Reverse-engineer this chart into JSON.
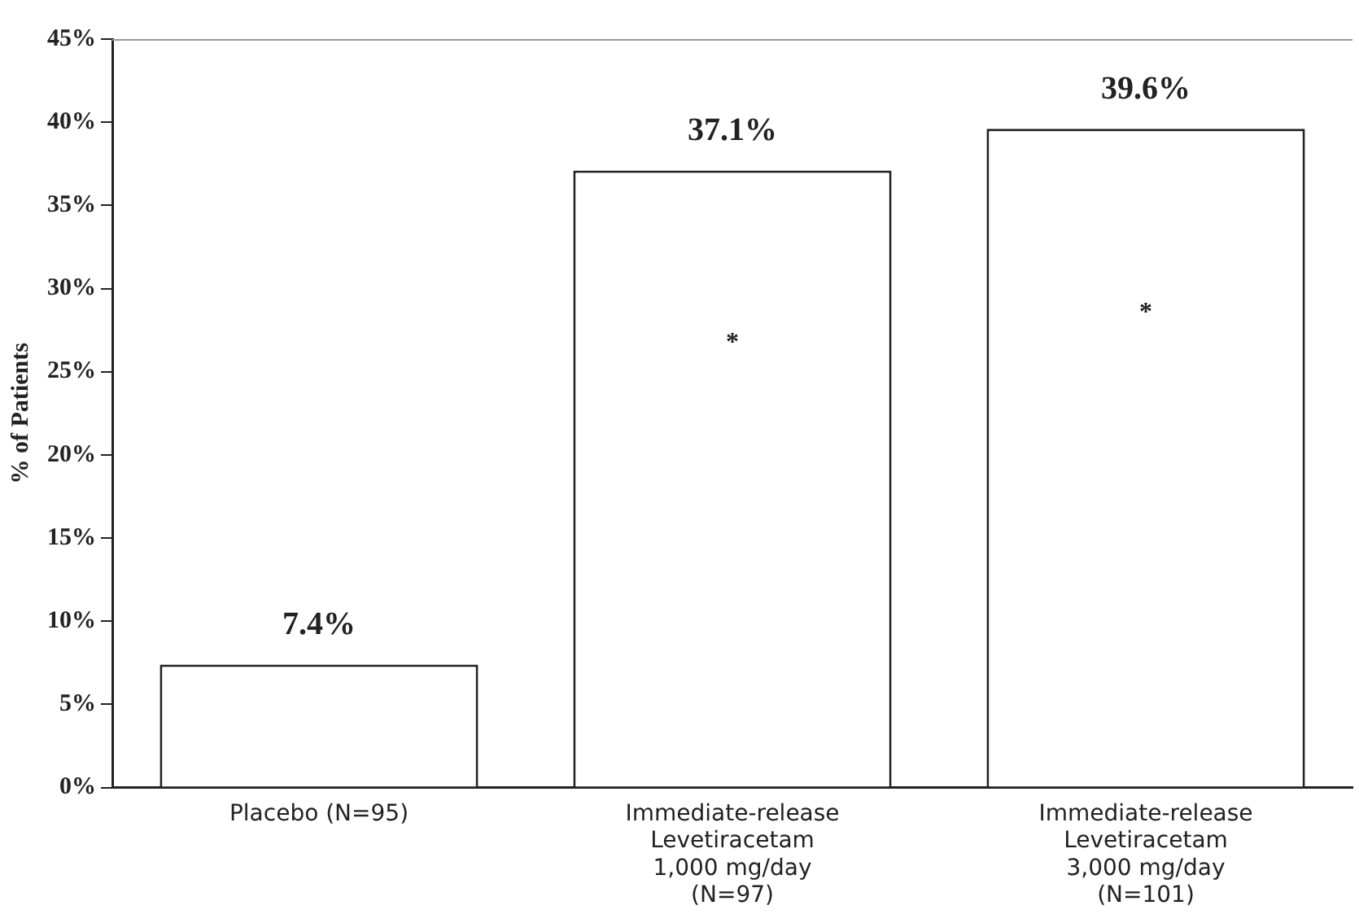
{
  "chart_data": {
    "type": "bar",
    "ylabel": "% of Patients",
    "categories": [
      "Placebo (N=95)",
      "Immediate-release\nLevetiracetam\n1,000 mg/day\n(N=97)",
      "Immediate-release\nLevetiracetam\n3,000 mg/day\n(N=101)"
    ],
    "values": [
      7.4,
      37.1,
      39.6
    ],
    "color": "#ffffff",
    "value_labels": [
      "7.4%",
      "37.1%",
      "39.6%"
    ],
    "ylim": [
      0,
      45
    ],
    "yticks": [
      {
        "value": 0,
        "label": "0%"
      },
      {
        "value": 5,
        "label": "5%"
      },
      {
        "value": 10,
        "label": "10%"
      },
      {
        "value": 15,
        "label": "15%"
      },
      {
        "value": 20,
        "label": "20%"
      },
      {
        "value": 25,
        "label": "25%"
      },
      {
        "value": 30,
        "label": "30%"
      },
      {
        "value": 35,
        "label": "35%"
      },
      {
        "value": 40,
        "label": "40%"
      },
      {
        "value": 45,
        "label": "45%"
      }
    ],
    "annotations": [
      "*",
      "*"
    ],
    "grid": false,
    "legend": false
  }
}
